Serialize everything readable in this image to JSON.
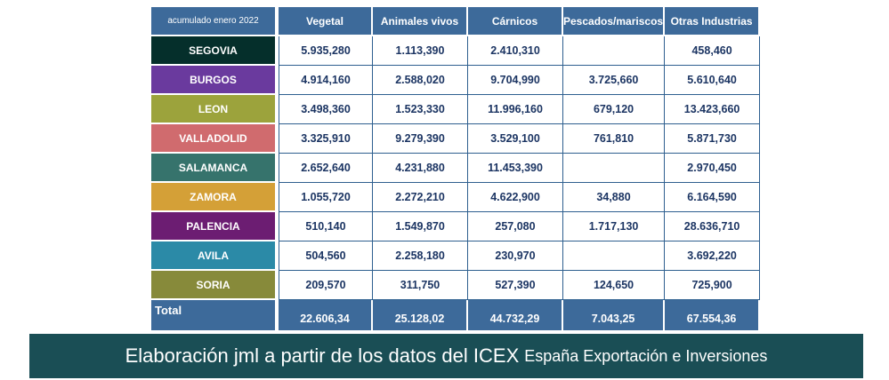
{
  "table": {
    "header": [
      "acumulado enero 2022",
      "Vegetal",
      "Animales vivos",
      "Cárnicos",
      "Pescados/mariscos",
      "Otras Industrias"
    ],
    "colors": [
      "#052f2b",
      "#6a3a9e",
      "#9ca33c",
      "#d06b6e",
      "#36736c",
      "#d4a037",
      "#6c1d72",
      "#2b8aa7",
      "#878a3a"
    ],
    "rows": [
      [
        "SEGOVIA",
        "5.935,280",
        "1.113,390",
        "2.410,310",
        "",
        "458,460"
      ],
      [
        "BURGOS",
        "4.914,160",
        "2.588,020",
        "9.704,990",
        "3.725,660",
        "5.610,640"
      ],
      [
        "LEON",
        "3.498,360",
        "1.523,330",
        "11.996,160",
        "679,120",
        "13.423,660"
      ],
      [
        "VALLADOLID",
        "3.325,910",
        "9.279,390",
        "3.529,100",
        "761,810",
        "5.871,730"
      ],
      [
        "SALAMANCA",
        "2.652,640",
        "4.231,880",
        "11.453,390",
        "",
        "2.970,450"
      ],
      [
        "ZAMORA",
        "1.055,720",
        "2.272,210",
        "4.622,900",
        "34,880",
        "6.164,590"
      ],
      [
        "PALENCIA",
        "510,140",
        "1.549,870",
        "257,080",
        "1.717,130",
        "28.636,710"
      ],
      [
        "AVILA",
        "504,560",
        "2.258,180",
        "230,970",
        "",
        "3.692,220"
      ],
      [
        "SORIA",
        "209,570",
        "311,750",
        "527,390",
        "124,650",
        "725,900"
      ]
    ],
    "total": [
      "Total",
      "22.606,34",
      "25.128,02",
      "44.732,29",
      "7.043,25",
      "67.554,36"
    ]
  },
  "footer": {
    "main": "Elaboración jml a partir de los datos del ICEX",
    "sub": "España Exportación e Inversiones"
  }
}
